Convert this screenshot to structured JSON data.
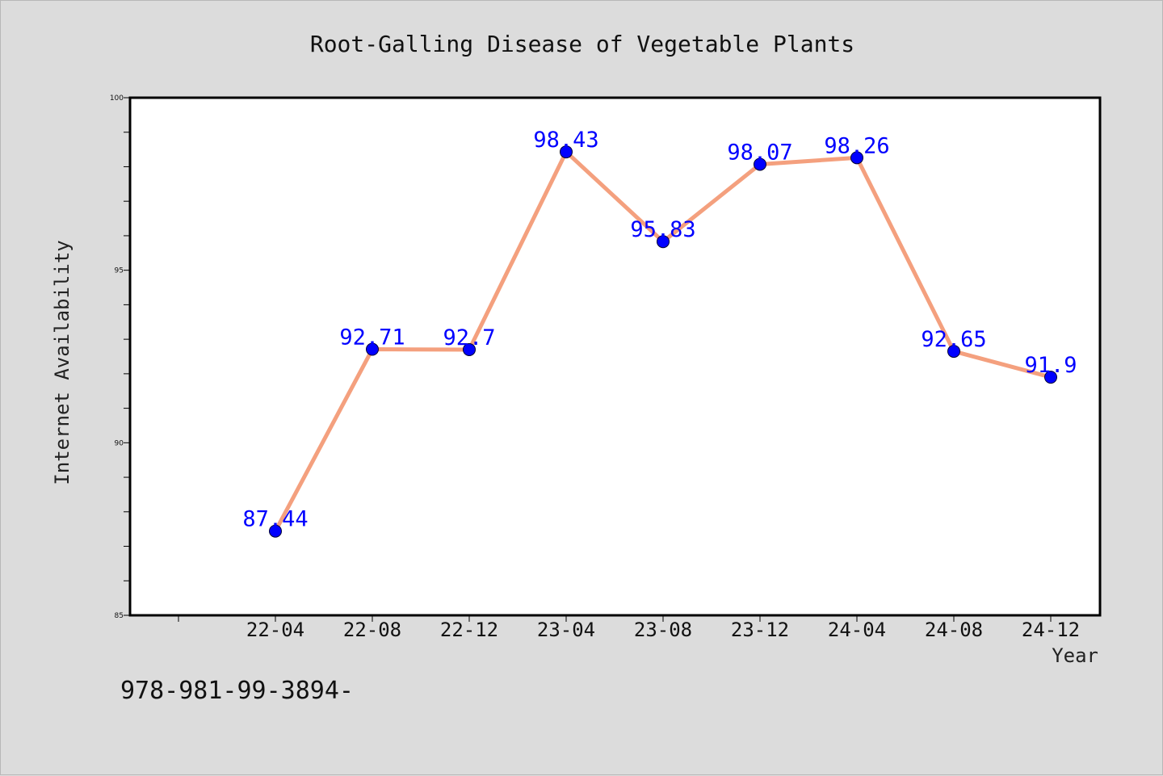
{
  "chart_data": {
    "type": "line",
    "title": "Root-Galling Disease of Vegetable Plants",
    "xlabel": "Year",
    "ylabel": "Internet Availability",
    "categories": [
      "22-04",
      "22-08",
      "22-12",
      "23-04",
      "23-08",
      "23-12",
      "24-04",
      "24-08",
      "24-12"
    ],
    "values": [
      87.44,
      92.71,
      92.7,
      98.43,
      95.83,
      98.07,
      98.26,
      92.65,
      91.9
    ],
    "data_labels": [
      "87.44",
      "92.71",
      "92.7",
      "98.43",
      "95.83",
      "98.07",
      "98.26",
      "92.65",
      "91.9"
    ],
    "ylim": [
      85,
      100
    ],
    "y_ticks": [
      "85",
      "90",
      "95",
      "100"
    ],
    "grid": false,
    "line_color": "#f4a07e",
    "marker_color": "#0000ff",
    "label_color": "#0000ff"
  },
  "footer": {
    "text": "978-981-99-3894-"
  }
}
